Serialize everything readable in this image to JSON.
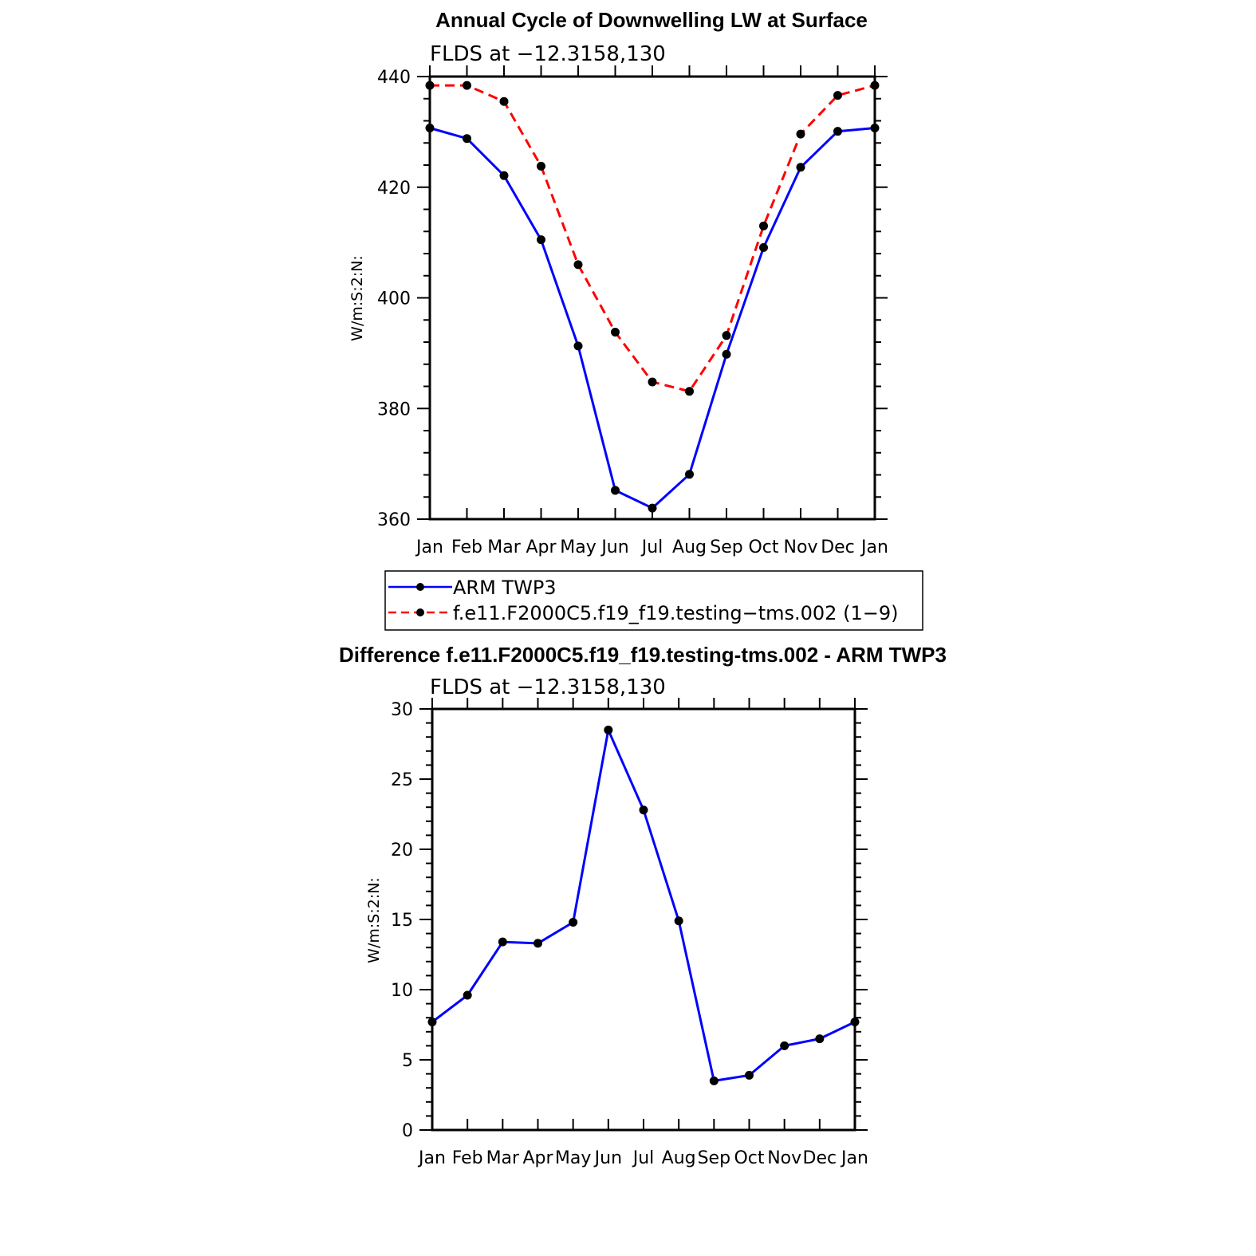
{
  "chart_data": [
    {
      "type": "line",
      "title": "Annual Cycle of Downwelling LW at Surface",
      "subtitle": "FLDS at −12.3158,130",
      "ylabel": "W/m:S:2:N:",
      "xlabel": "",
      "categories": [
        "Jan",
        "Feb",
        "Mar",
        "Apr",
        "May",
        "Jun",
        "Jul",
        "Aug",
        "Sep",
        "Oct",
        "Nov",
        "Dec",
        "Jan"
      ],
      "ylim": [
        360,
        440
      ],
      "yticks": [
        360,
        380,
        400,
        420,
        440
      ],
      "yticklabels": [
        "360",
        "380",
        "400",
        "420",
        "440"
      ],
      "series": [
        {
          "name": "ARM TWP3",
          "color": "#0000ff",
          "dash": "solid",
          "values": [
            430.7,
            428.8,
            422.1,
            410.5,
            391.3,
            365.2,
            362.0,
            368.1,
            389.8,
            409.1,
            423.6,
            430.1,
            430.7
          ]
        },
        {
          "name": "f.e11.F2000C5.f19_f19.testing−tms.002 (1−9)",
          "color": "#ff0000",
          "dash": "dashed",
          "values": [
            438.4,
            438.4,
            435.5,
            423.8,
            406.0,
            393.8,
            384.8,
            383.1,
            393.2,
            413.0,
            429.6,
            436.6,
            438.4
          ]
        }
      ],
      "legend_position": "bottom"
    },
    {
      "type": "line",
      "title": "Difference f.e11.F2000C5.f19_f19.testing-tms.002 - ARM TWP3",
      "subtitle": "FLDS at −12.3158,130",
      "ylabel": "W/m:S:2:N:",
      "xlabel": "",
      "categories": [
        "Jan",
        "Feb",
        "Mar",
        "Apr",
        "May",
        "Jun",
        "Jul",
        "Aug",
        "Sep",
        "Oct",
        "Nov",
        "Dec",
        "Jan"
      ],
      "ylim": [
        0,
        30
      ],
      "yticks": [
        0,
        5,
        10,
        15,
        20,
        25,
        30
      ],
      "yticklabels": [
        "0",
        "5",
        "10",
        "15",
        "20",
        "25",
        "30"
      ],
      "series": [
        {
          "color": "#0000ff",
          "dash": "solid",
          "values": [
            7.7,
            9.6,
            13.4,
            13.3,
            14.8,
            28.5,
            22.8,
            14.9,
            3.5,
            3.9,
            6.0,
            6.5,
            7.7
          ]
        }
      ]
    }
  ]
}
